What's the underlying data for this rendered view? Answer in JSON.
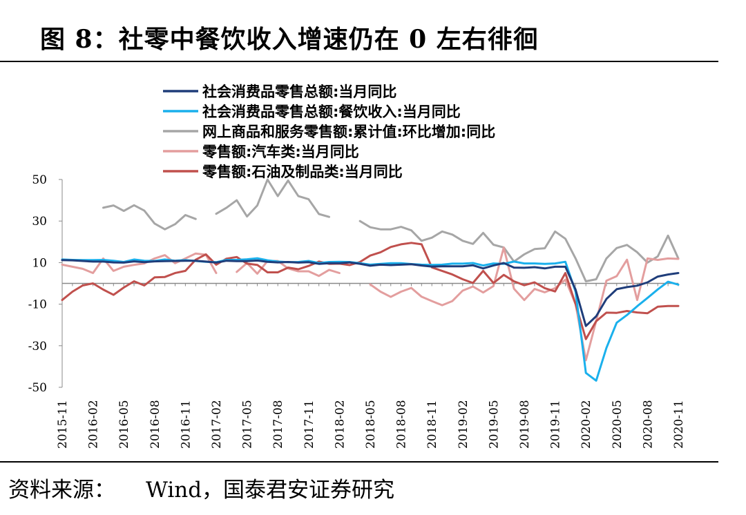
{
  "figure": {
    "title": "图 8：社零中餐饮收入增速仍在 0 左右徘徊",
    "source_label": "资料来源：",
    "source_text": "Wind，国泰君安证券研究"
  },
  "chart_data": {
    "type": "line",
    "title": "图 8：社零中餐饮收入增速仍在 0 左右徘徊",
    "xlabel": "",
    "ylabel": "",
    "ylim": [
      -50,
      50
    ],
    "yticks": [
      50,
      30,
      10,
      -10,
      -30,
      -50
    ],
    "x": [
      "2015-11",
      "2015-12",
      "2016-01",
      "2016-02",
      "2016-03",
      "2016-04",
      "2016-05",
      "2016-06",
      "2016-07",
      "2016-08",
      "2016-09",
      "2016-10",
      "2016-11",
      "2016-12",
      "2017-01",
      "2017-02",
      "2017-03",
      "2017-04",
      "2017-05",
      "2017-06",
      "2017-07",
      "2017-08",
      "2017-09",
      "2017-10",
      "2017-11",
      "2017-12",
      "2018-01",
      "2018-02",
      "2018-03",
      "2018-04",
      "2018-05",
      "2018-06",
      "2018-07",
      "2018-08",
      "2018-09",
      "2018-10",
      "2018-11",
      "2018-12",
      "2019-01",
      "2019-02",
      "2019-03",
      "2019-04",
      "2019-05",
      "2019-06",
      "2019-07",
      "2019-08",
      "2019-09",
      "2019-10",
      "2019-11",
      "2019-12",
      "2020-01",
      "2020-02",
      "2020-03",
      "2020-04",
      "2020-05",
      "2020-06",
      "2020-07",
      "2020-08",
      "2020-09",
      "2020-10",
      "2020-11"
    ],
    "xtick_labels": [
      "2015-11",
      "2016-02",
      "2016-05",
      "2016-08",
      "2016-11",
      "2017-02",
      "2017-05",
      "2017-08",
      "2017-11",
      "2018-02",
      "2018-05",
      "2018-08",
      "2018-11",
      "2019-02",
      "2019-05",
      "2019-08",
      "2019-11",
      "2020-02",
      "2020-05",
      "2020-08",
      "2020-11"
    ],
    "legend_position": "top-left",
    "series": [
      {
        "name": "社会消费品零售总额:当月同比",
        "color": "#1f3d7a",
        "values": [
          11.2,
          11.1,
          10.8,
          10.5,
          10.5,
          10.1,
          10,
          10.6,
          10.2,
          10.6,
          10.7,
          10.8,
          10.9,
          10.9,
          10.5,
          10,
          10.9,
          10.7,
          10.7,
          11,
          10.4,
          10.1,
          10.3,
          10,
          10.2,
          9.4,
          9.7,
          9.7,
          10.1,
          9.4,
          8.5,
          9,
          8.8,
          9,
          9.2,
          8.6,
          8.1,
          8.2,
          8.2,
          8.2,
          8.7,
          7.2,
          8.6,
          9.8,
          7.6,
          7.5,
          7.8,
          7.2,
          8,
          8,
          -3,
          -20.5,
          -15.8,
          -7.5,
          -2.8,
          -1.8,
          -1.1,
          0.5,
          3.3,
          4.3,
          5
        ]
      },
      {
        "name": "社会消费品零售总额:餐饮收入:当月同比",
        "color": "#1ab0ec",
        "values": [
          11.5,
          11.3,
          11.2,
          11.2,
          11.3,
          10.9,
          10.3,
          11.5,
          10.9,
          10.8,
          11.5,
          10.9,
          11.2,
          10.8,
          10.4,
          10.2,
          11.3,
          11.3,
          11.6,
          12.1,
          11.1,
          10.5,
          10.2,
          10.3,
          10.8,
          9.8,
          10.3,
          10.4,
          10.3,
          9.7,
          9,
          9.4,
          9.7,
          9.7,
          9.3,
          9,
          8.9,
          9,
          9.5,
          9.5,
          9.8,
          8.6,
          9.6,
          9.4,
          10.5,
          9.6,
          9.6,
          9.4,
          9.6,
          10.4,
          -4,
          -43.1,
          -46.8,
          -31.1,
          -18.9,
          -15.2,
          -11,
          -7,
          -2.9,
          0.8,
          -0.6
        ]
      },
      {
        "name": "网上商品和服务零售额:累计值:环比增加:同比",
        "color": "#a6a6a6",
        "values": [
          null,
          null,
          null,
          null,
          36.4,
          37.5,
          34.9,
          37.6,
          35,
          28.8,
          26,
          28.5,
          32.9,
          31,
          null,
          33.5,
          36.4,
          40,
          32.2,
          37.5,
          50,
          42,
          49.5,
          42,
          40.5,
          33.4,
          32,
          null,
          null,
          30,
          27,
          26,
          26,
          27.2,
          25.5,
          20.5,
          22,
          25,
          23.5,
          20.5,
          19,
          24.3,
          18.6,
          17.3,
          10.5,
          14,
          16.5,
          16.9,
          25,
          21.5,
          12,
          1,
          2,
          12,
          17,
          18.5,
          15,
          10,
          13,
          23,
          12
        ]
      },
      {
        "name": "零售额:汽车类:当月同比",
        "color": "#e39e9e",
        "values": [
          9,
          8,
          7,
          5,
          12,
          6,
          8,
          8.9,
          9.6,
          12,
          13.6,
          9.7,
          12,
          14.4,
          13.8,
          5,
          null,
          5.5,
          9.8,
          4.7,
          10.8,
          10.8,
          7.2,
          5.8,
          5.8,
          3.6,
          6.5,
          5,
          null,
          null,
          -0.5,
          -4,
          -6.5,
          -4,
          -2.2,
          -6.4,
          -8.5,
          -10.5,
          -8.5,
          -3.5,
          -1.5,
          -4.4,
          -1.3,
          17.2,
          -2.6,
          -8,
          -2.7,
          -4.3,
          -2.3,
          1.8,
          -10,
          -37,
          -18.1,
          1.3,
          3.5,
          11.4,
          -8,
          12,
          11.3,
          12,
          11.8
        ]
      },
      {
        "name": "零售额:石油及制品类:当月同比",
        "color": "#c0504d",
        "values": [
          -8,
          -4,
          -1,
          0,
          -3,
          -5.5,
          -2,
          1,
          -1,
          2.9,
          3.1,
          5,
          6,
          11.4,
          14,
          9,
          11.9,
          12.7,
          9.5,
          8.9,
          5.3,
          5.3,
          7.6,
          6.8,
          8.4,
          10.5,
          9.4,
          9.5,
          8.8,
          10.3,
          13.4,
          15,
          17.5,
          18.8,
          19.5,
          18.8,
          7.7,
          6,
          4.3,
          2,
          0.2,
          6,
          0.2,
          4.1,
          1,
          -0.9,
          0.5,
          -2.3,
          -3.9,
          5,
          -10,
          -26.8,
          -18.2,
          -14.1,
          -14.2,
          -13.3,
          -14,
          -14.4,
          -11.2,
          -10.9,
          -10.9
        ]
      }
    ]
  }
}
